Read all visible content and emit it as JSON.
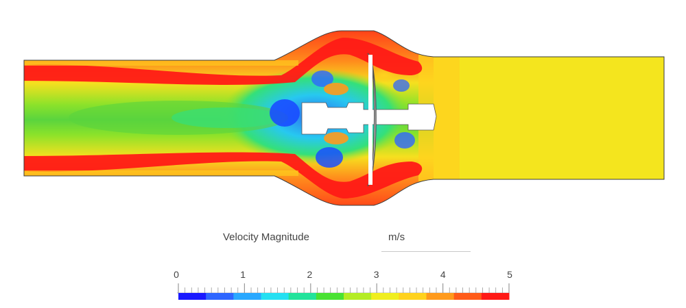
{
  "legend": {
    "title": "Velocity Magnitude",
    "unit": "m/s",
    "min": 0,
    "max": 5,
    "tick_labels": [
      "0",
      "1",
      "2",
      "3",
      "4",
      "5"
    ],
    "colors": [
      "#1a1aff",
      "#2e66ff",
      "#29a8ff",
      "#25e0f2",
      "#22e39b",
      "#49e233",
      "#b4ec24",
      "#f0ee1f",
      "#ffd21e",
      "#ff9a1c",
      "#ff5b19",
      "#ff1a16"
    ]
  },
  "field": {
    "inlet_core_color": "#5ad43e",
    "outlet_color": "#f4e51e",
    "jet_color": "#ff1a16"
  }
}
